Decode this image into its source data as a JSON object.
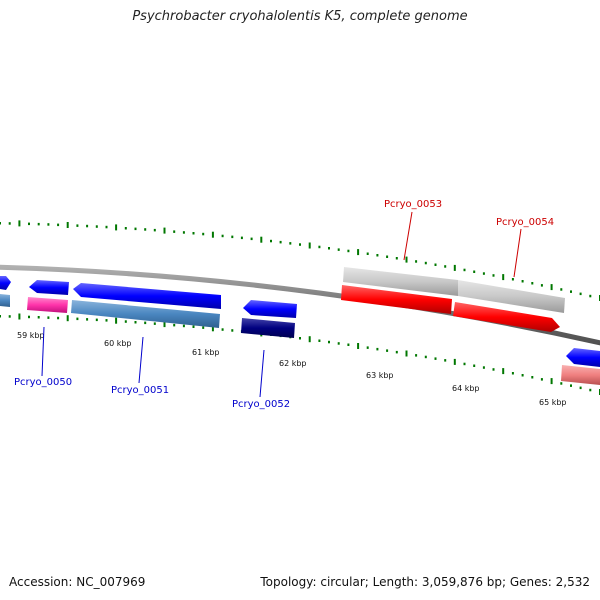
{
  "title": "Psychrobacter cryohalolentis K5, complete genome",
  "footer": {
    "accession": "Accession: NC_007969",
    "summary": "Topology: circular; Length: 3,059,876 bp; Genes: 2,532"
  },
  "scale_labels": [
    "59 kbp",
    "60 kbp",
    "61 kbp",
    "62 kbp",
    "63 kbp",
    "64 kbp",
    "65 kbp"
  ],
  "genes": [
    {
      "label": "Pcryo_0050",
      "color": "#0000cc"
    },
    {
      "label": "Pcryo_0051",
      "color": "#0000cc"
    },
    {
      "label": "Pcryo_0052",
      "color": "#0000cc"
    },
    {
      "label": "Pcryo_0053",
      "color": "#cc0000"
    },
    {
      "label": "Pcryo_0054",
      "color": "#cc0000"
    }
  ],
  "colors": {
    "forward_cds": "#0000ff",
    "reverse_cds": "#ff0000",
    "steelblue_feature": "#4a86c0",
    "navy_feature": "#000080",
    "pink_feature": "#ff33aa",
    "gray_feature": "#c8c8c8",
    "light_red_feature": "#f08080",
    "backbone": "#808080",
    "tick": "#007700"
  }
}
